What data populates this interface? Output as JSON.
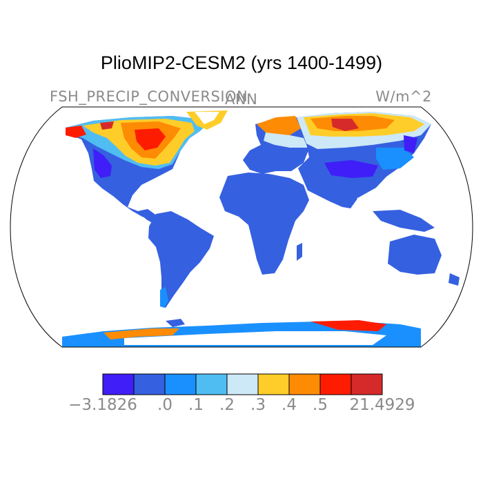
{
  "title": "PlioMIP2-CESM2 (yrs 1400-1499)",
  "subtitle_left": "FSH_PRECIP_CONVERSION",
  "subtitle_center": "ANN",
  "subtitle_right": "W/m^2",
  "projection": "Robinson",
  "colorbar": {
    "colors": [
      "#3f1ef7",
      "#3560e0",
      "#1a90ff",
      "#50bdf2",
      "#cde8f7",
      "#fecd29",
      "#fe8b04",
      "#fe1c00",
      "#d62a2a"
    ],
    "labels": [
      "−3.1826",
      ".0",
      ".1",
      ".2",
      ".3",
      ".4",
      ".5",
      "21.4929"
    ]
  },
  "chart_data": {
    "type": "heatmap",
    "title": "PlioMIP2-CESM2 (yrs 1400-1499)",
    "variable": "FSH_PRECIP_CONVERSION",
    "period": "ANN",
    "units": "W/m^2",
    "min": -3.1826,
    "max": 21.4929,
    "levels": [
      0.0,
      0.1,
      0.2,
      0.3,
      0.4,
      0.5
    ],
    "level_colors": [
      "#3f1ef7",
      "#3560e0",
      "#1a90ff",
      "#50bdf2",
      "#cde8f7",
      "#fecd29",
      "#fe8b04",
      "#fe1c00",
      "#d62a2a"
    ],
    "pattern": "values mostly 0.0-0.1 over tropical and mid-latitude land; 0.3-21.49 over northern North America, Greenland margins, Scandinavia, Siberia and coastal Antarctica"
  }
}
